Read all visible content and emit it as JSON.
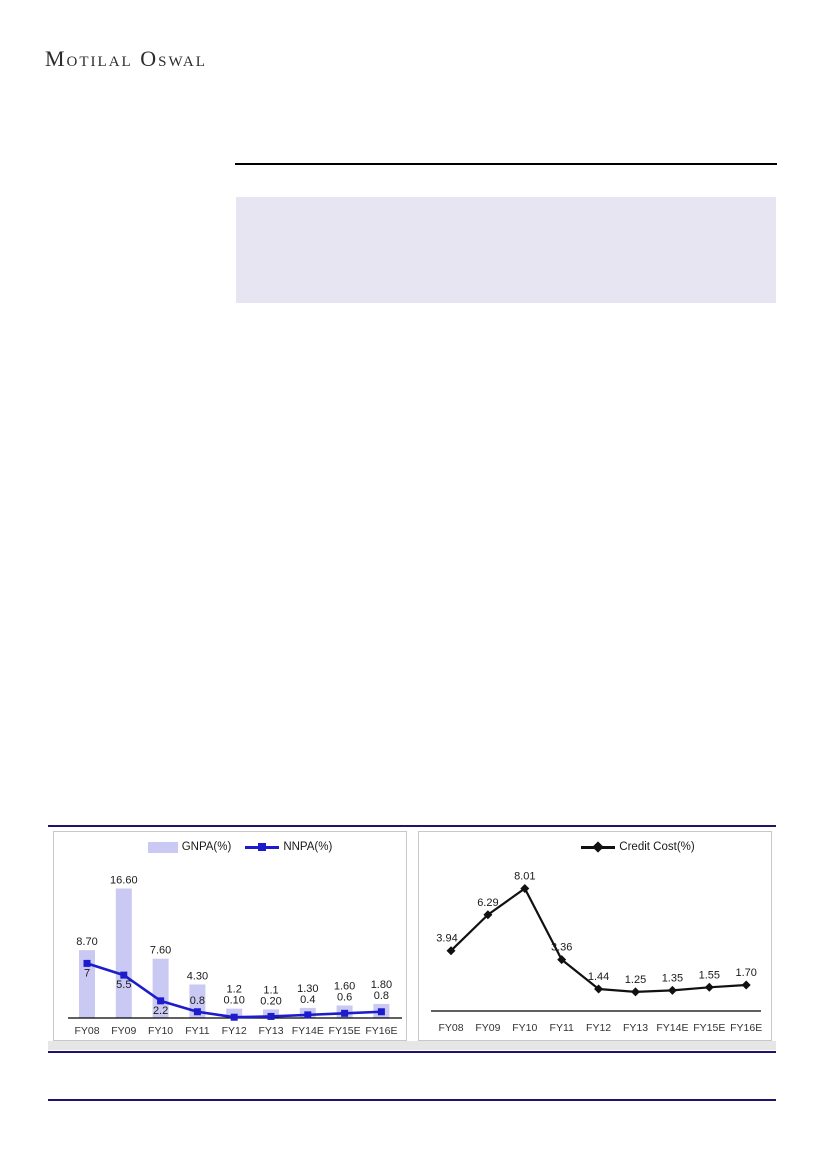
{
  "logo": {
    "text": "Motilal Oswal"
  },
  "colors": {
    "navy_rule": "#1f1468",
    "black_rule": "#000000",
    "highlight_box": "#e7e5f2",
    "gnpa_bar": "#c9c9f3",
    "nnpa_line": "#1c1ccd",
    "credit_line": "#111111"
  },
  "chart_data": [
    {
      "type": "bar",
      "title": "",
      "xlabel": "",
      "ylabel": "",
      "grid": false,
      "legend_position": "top",
      "ylim": [
        0,
        17.5
      ],
      "categories": [
        "FY08",
        "FY09",
        "FY10",
        "FY11",
        "FY12",
        "FY13",
        "FY14E",
        "FY15E",
        "FY16E"
      ],
      "series": [
        {
          "name": "GNPA(%)",
          "type": "bar",
          "values": [
            8.7,
            16.6,
            7.6,
            4.3,
            1.2,
            1.1,
            1.3,
            1.6,
            1.8
          ],
          "labels": [
            "8.70",
            "16.60",
            "7.60",
            "4.30",
            "1.2",
            "1.1",
            "1.30",
            "1.60",
            "1.80"
          ],
          "color": "#c9c9f3",
          "swatch": "bar"
        },
        {
          "name": "NNPA(%)",
          "type": "line",
          "marker": "square",
          "values": [
            7,
            5.5,
            2.2,
            0.8,
            0.1,
            0.2,
            0.4,
            0.6,
            0.8
          ],
          "labels": [
            "7",
            "5.5",
            "2.2",
            "0.8",
            "0.10",
            "0.20",
            "0.4",
            "0.6",
            "0.8"
          ],
          "color": "#1c1ccd",
          "swatch": "line-square"
        }
      ]
    },
    {
      "type": "line",
      "title": "",
      "xlabel": "",
      "ylabel": "",
      "grid": false,
      "legend_position": "top",
      "ylim": [
        0,
        11.5
      ],
      "categories": [
        "FY08",
        "FY09",
        "FY10",
        "FY11",
        "FY12",
        "FY13",
        "FY14E",
        "FY15E",
        "FY16E"
      ],
      "series": [
        {
          "name": "Credit Cost(%)",
          "type": "line",
          "marker": "diamond",
          "values": [
            3.94,
            6.29,
            8.01,
            3.36,
            1.44,
            1.25,
            1.35,
            1.55,
            1.7
          ],
          "labels": [
            "3.94",
            "6.29",
            "8.01",
            "3.36",
            "1.44",
            "1.25",
            "1.35",
            "1.55",
            "1.70"
          ],
          "color": "#111111",
          "swatch": "line-diamond"
        }
      ]
    }
  ]
}
